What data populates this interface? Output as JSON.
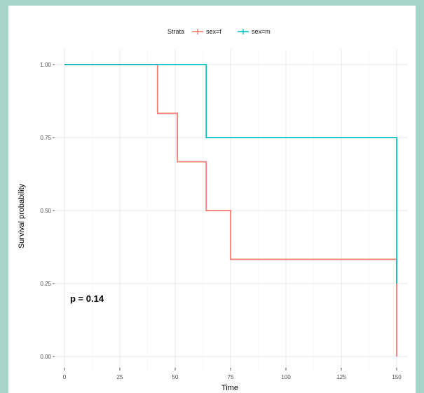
{
  "chart_data": {
    "type": "line",
    "xlabel": "Time",
    "ylabel": "Survival probability",
    "xlim": [
      0,
      150
    ],
    "ylim": [
      0,
      1
    ],
    "x_ticks": [
      0,
      25,
      50,
      75,
      100,
      125,
      150
    ],
    "y_ticks": [
      0,
      0.25,
      0.5,
      0.75,
      1
    ],
    "y_tick_labels": [
      "0.00",
      "0.25",
      "0.50",
      "0.75",
      "1.00"
    ],
    "grid": true,
    "legend": {
      "title": "Strata",
      "position": "top"
    },
    "annotation": "p = 0.14",
    "series": [
      {
        "name": "sex=f",
        "color": "#f8766d",
        "step": "post",
        "x": [
          0,
          42,
          51,
          64,
          75,
          150,
          150
        ],
        "y": [
          1.0,
          0.833,
          0.667,
          0.5,
          0.333,
          0.333,
          0.0
        ]
      },
      {
        "name": "sex=m",
        "color": "#00bfc4",
        "step": "post",
        "x": [
          0,
          64,
          150,
          150
        ],
        "y": [
          1.0,
          0.75,
          0.75,
          0.25
        ]
      }
    ]
  }
}
